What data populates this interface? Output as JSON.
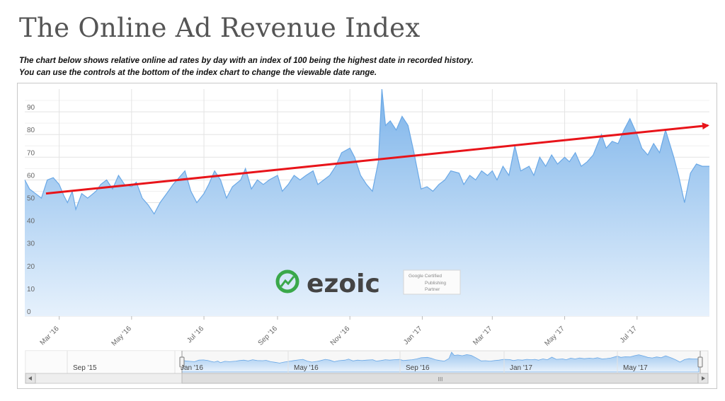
{
  "page": {
    "title": "The Online Ad Revenue Index",
    "subtitle_line1": "The chart below shows relative online ad rates by day with an index of 100 being the highest date in recorded history.",
    "subtitle_line2": "You can use the controls at the bottom of the index chart to change the viewable date range."
  },
  "watermark": {
    "brand": "ezoic",
    "badge_lines": [
      "Google Certified",
      "Publishing",
      "Partner"
    ]
  },
  "colors": {
    "area_fill_top": "#7db4ea",
    "area_fill_bottom": "#e6f1fc",
    "area_line": "#6aa8e6",
    "trend_arrow": "#e8141a",
    "logo_green": "#3aa84a",
    "logo_dark": "#444444",
    "grid": "#e3e3e3"
  },
  "chart_data": {
    "type": "area",
    "title": "",
    "xlabel": "",
    "ylabel": "",
    "x_range": [
      "2016-02-01",
      "2017-08-31"
    ],
    "ylim": [
      0,
      100
    ],
    "yticks": [
      0,
      10,
      20,
      30,
      40,
      50,
      60,
      70,
      80,
      90
    ],
    "xtick_labels": [
      "Mar '16",
      "May '16",
      "Jul '16",
      "Sep '16",
      "Nov '16",
      "Jan '17",
      "Mar '17",
      "May '17",
      "Jul '17"
    ],
    "xtick_dates": [
      "2016-03-01",
      "2016-05-01",
      "2016-07-01",
      "2016-09-01",
      "2016-11-01",
      "2017-01-01",
      "2017-03-01",
      "2017-05-01",
      "2017-07-01"
    ],
    "grid": true,
    "series": [
      {
        "values": [
          [
            "2016-02-01",
            60
          ],
          [
            "2016-02-05",
            56
          ],
          [
            "2016-02-10",
            54
          ],
          [
            "2016-02-15",
            52
          ],
          [
            "2016-02-20",
            60
          ],
          [
            "2016-02-25",
            61
          ],
          [
            "2016-03-01",
            58
          ],
          [
            "2016-03-05",
            53
          ],
          [
            "2016-03-08",
            50
          ],
          [
            "2016-03-12",
            55
          ],
          [
            "2016-03-15",
            47
          ],
          [
            "2016-03-20",
            54
          ],
          [
            "2016-03-25",
            52
          ],
          [
            "2016-04-01",
            55
          ],
          [
            "2016-04-05",
            58
          ],
          [
            "2016-04-10",
            60
          ],
          [
            "2016-04-15",
            56
          ],
          [
            "2016-04-20",
            62
          ],
          [
            "2016-04-25",
            58
          ],
          [
            "2016-05-01",
            57
          ],
          [
            "2016-05-05",
            59
          ],
          [
            "2016-05-10",
            52
          ],
          [
            "2016-05-15",
            49
          ],
          [
            "2016-05-20",
            45
          ],
          [
            "2016-05-25",
            50
          ],
          [
            "2016-06-01",
            55
          ],
          [
            "2016-06-05",
            58
          ],
          [
            "2016-06-10",
            61
          ],
          [
            "2016-06-15",
            64
          ],
          [
            "2016-06-20",
            55
          ],
          [
            "2016-06-25",
            50
          ],
          [
            "2016-07-01",
            54
          ],
          [
            "2016-07-05",
            58
          ],
          [
            "2016-07-10",
            64
          ],
          [
            "2016-07-15",
            60
          ],
          [
            "2016-07-20",
            52
          ],
          [
            "2016-07-25",
            57
          ],
          [
            "2016-08-01",
            60
          ],
          [
            "2016-08-05",
            65
          ],
          [
            "2016-08-10",
            56
          ],
          [
            "2016-08-15",
            60
          ],
          [
            "2016-08-20",
            58
          ],
          [
            "2016-08-25",
            60
          ],
          [
            "2016-09-01",
            62
          ],
          [
            "2016-09-05",
            55
          ],
          [
            "2016-09-10",
            58
          ],
          [
            "2016-09-15",
            62
          ],
          [
            "2016-09-20",
            60
          ],
          [
            "2016-09-25",
            62
          ],
          [
            "2016-10-01",
            64
          ],
          [
            "2016-10-05",
            58
          ],
          [
            "2016-10-10",
            60
          ],
          [
            "2016-10-15",
            62
          ],
          [
            "2016-10-20",
            66
          ],
          [
            "2016-10-25",
            72
          ],
          [
            "2016-11-01",
            74
          ],
          [
            "2016-11-05",
            70
          ],
          [
            "2016-11-10",
            62
          ],
          [
            "2016-11-15",
            58
          ],
          [
            "2016-11-20",
            55
          ],
          [
            "2016-11-25",
            68
          ],
          [
            "2016-11-28",
            100
          ],
          [
            "2016-12-01",
            84
          ],
          [
            "2016-12-05",
            86
          ],
          [
            "2016-12-10",
            82
          ],
          [
            "2016-12-15",
            88
          ],
          [
            "2016-12-20",
            84
          ],
          [
            "2016-12-25",
            72
          ],
          [
            "2016-12-31",
            56
          ],
          [
            "2017-01-05",
            57
          ],
          [
            "2017-01-10",
            55
          ],
          [
            "2017-01-15",
            58
          ],
          [
            "2017-01-20",
            60
          ],
          [
            "2017-01-25",
            64
          ],
          [
            "2017-02-01",
            63
          ],
          [
            "2017-02-05",
            58
          ],
          [
            "2017-02-10",
            62
          ],
          [
            "2017-02-15",
            60
          ],
          [
            "2017-02-20",
            64
          ],
          [
            "2017-02-25",
            62
          ],
          [
            "2017-03-01",
            64
          ],
          [
            "2017-03-05",
            60
          ],
          [
            "2017-03-10",
            66
          ],
          [
            "2017-03-15",
            62
          ],
          [
            "2017-03-20",
            75
          ],
          [
            "2017-03-25",
            64
          ],
          [
            "2017-04-01",
            66
          ],
          [
            "2017-04-05",
            62
          ],
          [
            "2017-04-10",
            70
          ],
          [
            "2017-04-15",
            66
          ],
          [
            "2017-04-20",
            71
          ],
          [
            "2017-04-25",
            67
          ],
          [
            "2017-05-01",
            70
          ],
          [
            "2017-05-05",
            68
          ],
          [
            "2017-05-10",
            72
          ],
          [
            "2017-05-15",
            66
          ],
          [
            "2017-05-20",
            68
          ],
          [
            "2017-05-25",
            71
          ],
          [
            "2017-06-01",
            80
          ],
          [
            "2017-06-05",
            74
          ],
          [
            "2017-06-10",
            77
          ],
          [
            "2017-06-15",
            76
          ],
          [
            "2017-06-20",
            82
          ],
          [
            "2017-06-25",
            87
          ],
          [
            "2017-07-01",
            80
          ],
          [
            "2017-07-05",
            74
          ],
          [
            "2017-07-10",
            71
          ],
          [
            "2017-07-15",
            76
          ],
          [
            "2017-07-20",
            72
          ],
          [
            "2017-07-25",
            82
          ],
          [
            "2017-08-01",
            70
          ],
          [
            "2017-08-05",
            62
          ],
          [
            "2017-08-10",
            50
          ],
          [
            "2017-08-15",
            63
          ],
          [
            "2017-08-20",
            67
          ],
          [
            "2017-08-25",
            66
          ],
          [
            "2017-08-31",
            66
          ]
        ]
      }
    ],
    "annotations": [
      {
        "type": "trend-arrow",
        "from": [
          "2016-02-01",
          54
        ],
        "to": [
          "2017-08-31",
          84
        ]
      }
    ],
    "navigator": {
      "tick_labels": [
        "Sep '15",
        "Jan '16",
        "May '16",
        "Sep '16",
        "Jan '17",
        "May '17"
      ],
      "scrollbar_grip": "III"
    }
  }
}
